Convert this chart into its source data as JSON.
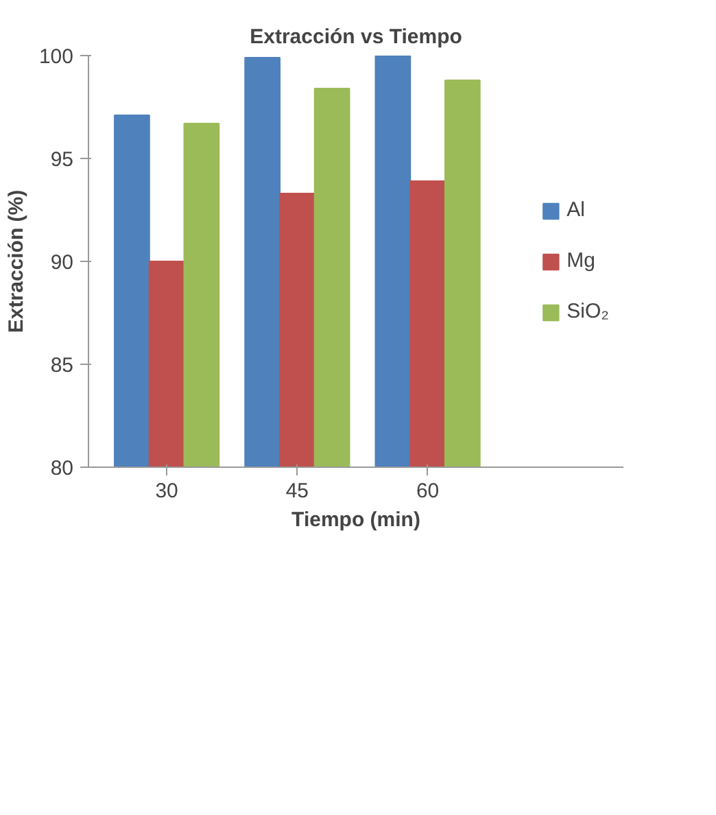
{
  "chart_data": {
    "type": "bar",
    "title": "Extracción vs Tiempo",
    "xlabel": "Tiempo (min)",
    "ylabel": "Extracción (%)",
    "categories": [
      "30",
      "45",
      "60"
    ],
    "series": [
      {
        "name": "Al",
        "color": "#4f81bd",
        "values": [
          97.1,
          99.9,
          100
        ]
      },
      {
        "name": "Mg",
        "color": "#c0504d",
        "values": [
          90.0,
          93.3,
          93.9
        ]
      },
      {
        "name": "SiO₂",
        "color": "#9bbb59",
        "values": [
          96.7,
          98.4,
          98.8
        ]
      }
    ],
    "ylim": [
      80,
      100
    ],
    "yticks": [
      80,
      85,
      90,
      95,
      100
    ],
    "grid": false,
    "legend": "right"
  }
}
